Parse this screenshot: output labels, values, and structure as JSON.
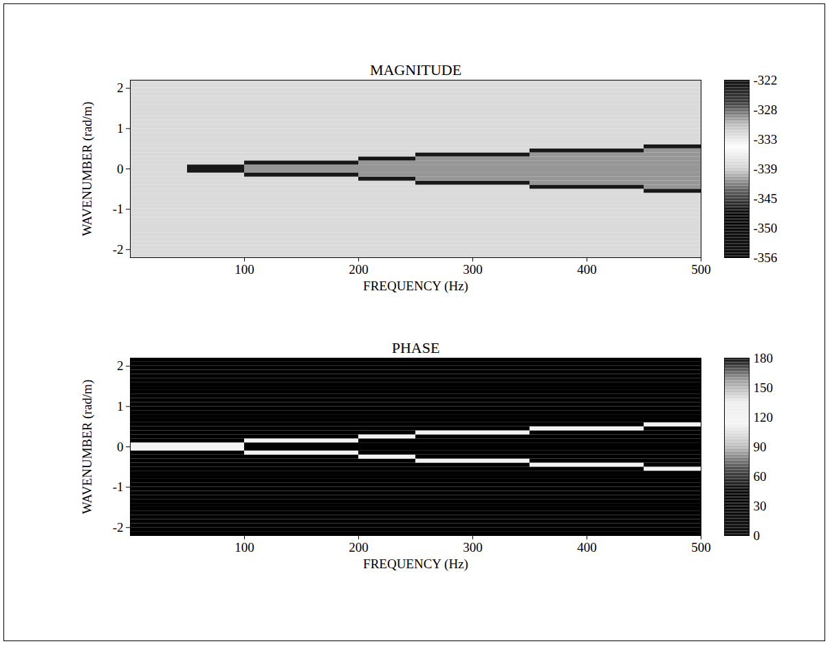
{
  "chart_data": [
    {
      "type": "heatmap",
      "title": "MAGNITUDE",
      "x_label": "FREQUENCY (Hz)",
      "y_label": "WAVENUMBER (rad/m)",
      "xlim": [
        0,
        500
      ],
      "xticks": [
        100,
        200,
        300,
        400,
        500
      ],
      "ylim": [
        -2.2,
        2.2
      ],
      "yticks": [
        -2,
        -1,
        0,
        1,
        2
      ],
      "x_bins": [
        0,
        50,
        100,
        150,
        200,
        250,
        300,
        350,
        400,
        450,
        500
      ],
      "y_bins": [
        -2.2,
        -2.1,
        -2.0,
        -1.9,
        -1.8,
        -1.7,
        -1.6,
        -1.5,
        -1.4,
        -1.3,
        -1.2,
        -1.1,
        -1.0,
        -0.9,
        -0.8,
        -0.7,
        -0.6,
        -0.5,
        -0.4,
        -0.3,
        -0.2,
        -0.1,
        0,
        0.1,
        0.2,
        0.3,
        0.4,
        0.5,
        0.6,
        0.7,
        0.8,
        0.9,
        1.0,
        1.1,
        1.2,
        1.3,
        1.4,
        1.5,
        1.6,
        1.7,
        1.8,
        1.9,
        2.0,
        2.1,
        2.2
      ],
      "z": [
        [
          -338,
          -338,
          -338,
          -338,
          -338,
          -338,
          -338,
          -338,
          -338,
          -338
        ],
        [
          -338,
          -338,
          -338,
          -338,
          -338,
          -338,
          -338,
          -338,
          -338,
          -338
        ],
        [
          -338,
          -338,
          -338,
          -338,
          -338,
          -338,
          -338,
          -338,
          -338,
          -338
        ],
        [
          -338,
          -338,
          -338,
          -338,
          -338,
          -338,
          -338,
          -338,
          -338,
          -338
        ],
        [
          -338,
          -338,
          -338,
          -338,
          -338,
          -338,
          -338,
          -338,
          -338,
          -338
        ],
        [
          -338,
          -338,
          -338,
          -338,
          -338,
          -338,
          -338,
          -338,
          -338,
          -338
        ],
        [
          -338,
          -338,
          -338,
          -338,
          -338,
          -338,
          -338,
          -338,
          -338,
          -338
        ],
        [
          -338,
          -338,
          -338,
          -338,
          -338,
          -338,
          -338,
          -338,
          -338,
          -338
        ],
        [
          -338,
          -338,
          -338,
          -338,
          -338,
          -338,
          -338,
          -338,
          -338,
          -338
        ],
        [
          -338,
          -338,
          -338,
          -338,
          -338,
          -338,
          -338,
          -338,
          -338,
          -338
        ],
        [
          -338,
          -338,
          -338,
          -338,
          -338,
          -338,
          -338,
          -338,
          -338,
          -338
        ],
        [
          -338,
          -338,
          -338,
          -338,
          -338,
          -338,
          -338,
          -338,
          -338,
          -338
        ],
        [
          -338,
          -338,
          -338,
          -338,
          -338,
          -338,
          -338,
          -338,
          -338,
          -338
        ],
        [
          -338,
          -338,
          -338,
          -338,
          -338,
          -338,
          -338,
          -338,
          -338,
          -338
        ],
        [
          -338,
          -338,
          -338,
          -338,
          -338,
          -338,
          -338,
          -338,
          -338,
          -338
        ],
        [
          -338,
          -338,
          -338,
          -338,
          -338,
          -338,
          -338,
          -338,
          -338,
          -338
        ],
        [
          -338,
          -338,
          -338,
          -338,
          -338,
          -338,
          -338,
          -338,
          -338,
          -324
        ],
        [
          -338,
          -338,
          -338,
          -338,
          -338,
          -338,
          -338,
          -324,
          -324,
          -341
        ],
        [
          -338,
          -338,
          -338,
          -338,
          -338,
          -324,
          -324,
          -341,
          -341,
          -341
        ],
        [
          -338,
          -338,
          -338,
          -338,
          -324,
          -341,
          -341,
          -341,
          -341,
          -341
        ],
        [
          -338,
          -338,
          -324,
          -324,
          -341,
          -341,
          -341,
          -341,
          -341,
          -341
        ],
        [
          -338,
          -324,
          -341,
          -341,
          -341,
          -341,
          -341,
          -341,
          -341,
          -341
        ],
        [
          -338,
          -324,
          -341,
          -341,
          -341,
          -341,
          -341,
          -341,
          -341,
          -341
        ],
        [
          -338,
          -338,
          -324,
          -324,
          -341,
          -341,
          -341,
          -341,
          -341,
          -341
        ],
        [
          -338,
          -338,
          -338,
          -338,
          -324,
          -341,
          -341,
          -341,
          -341,
          -341
        ],
        [
          -338,
          -338,
          -338,
          -338,
          -338,
          -324,
          -324,
          -341,
          -341,
          -341
        ],
        [
          -338,
          -338,
          -338,
          -338,
          -338,
          -338,
          -338,
          -324,
          -324,
          -341
        ],
        [
          -338,
          -338,
          -338,
          -338,
          -338,
          -338,
          -338,
          -338,
          -338,
          -324
        ],
        [
          -338,
          -338,
          -338,
          -338,
          -338,
          -338,
          -338,
          -338,
          -338,
          -338
        ],
        [
          -338,
          -338,
          -338,
          -338,
          -338,
          -338,
          -338,
          -338,
          -338,
          -338
        ],
        [
          -338,
          -338,
          -338,
          -338,
          -338,
          -338,
          -338,
          -338,
          -338,
          -338
        ],
        [
          -338,
          -338,
          -338,
          -338,
          -338,
          -338,
          -338,
          -338,
          -338,
          -338
        ],
        [
          -338,
          -338,
          -338,
          -338,
          -338,
          -338,
          -338,
          -338,
          -338,
          -338
        ],
        [
          -338,
          -338,
          -338,
          -338,
          -338,
          -338,
          -338,
          -338,
          -338,
          -338
        ],
        [
          -338,
          -338,
          -338,
          -338,
          -338,
          -338,
          -338,
          -338,
          -338,
          -338
        ],
        [
          -338,
          -338,
          -338,
          -338,
          -338,
          -338,
          -338,
          -338,
          -338,
          -338
        ],
        [
          -338,
          -338,
          -338,
          -338,
          -338,
          -338,
          -338,
          -338,
          -338,
          -338
        ],
        [
          -338,
          -338,
          -338,
          -338,
          -338,
          -338,
          -338,
          -338,
          -338,
          -338
        ],
        [
          -338,
          -338,
          -338,
          -338,
          -338,
          -338,
          -338,
          -338,
          -338,
          -338
        ],
        [
          -338,
          -338,
          -338,
          -338,
          -338,
          -338,
          -338,
          -338,
          -338,
          -338
        ],
        [
          -338,
          -338,
          -338,
          -338,
          -338,
          -338,
          -338,
          -338,
          -338,
          -338
        ],
        [
          -338,
          -338,
          -338,
          -338,
          -338,
          -338,
          -338,
          -338,
          -338,
          -338
        ],
        [
          -338,
          -338,
          -338,
          -338,
          -338,
          -338,
          -338,
          -338,
          -338,
          -338
        ],
        [
          -338,
          -338,
          -338,
          -338,
          -338,
          -338,
          -338,
          -338,
          -338,
          -338
        ]
      ],
      "colorbar": {
        "range": [
          -356,
          -322
        ],
        "ticks": [
          -322,
          {
            "value": -327.67,
            "label": "-328"
          },
          {
            "value": -333.33,
            "label": "-333"
          },
          -339,
          {
            "value": -344.67,
            "label": "-345"
          },
          {
            "value": -350.33,
            "label": "-350"
          },
          -356
        ],
        "colors": [
          "#000000",
          "#000000",
          "#000000",
          "#555555",
          "#cfcfcf",
          "#ffffff",
          "#bbbbbb",
          "#333333",
          "#000000"
        ]
      }
    },
    {
      "type": "heatmap",
      "title": "PHASE",
      "x_label": "FREQUENCY (Hz)",
      "y_label": "WAVENUMBER (rad/m)",
      "xlim": [
        0,
        500
      ],
      "xticks": [
        100,
        200,
        300,
        400,
        500
      ],
      "ylim": [
        -2.2,
        2.2
      ],
      "yticks": [
        -2,
        -1,
        0,
        1,
        2
      ],
      "x_bins": [
        0,
        50,
        100,
        150,
        200,
        250,
        300,
        350,
        400,
        450,
        500
      ],
      "y_bins": [
        -2.2,
        -2.1,
        -2.0,
        -1.9,
        -1.8,
        -1.7,
        -1.6,
        -1.5,
        -1.4,
        -1.3,
        -1.2,
        -1.1,
        -1.0,
        -0.9,
        -0.8,
        -0.7,
        -0.6,
        -0.5,
        -0.4,
        -0.3,
        -0.2,
        -0.1,
        0,
        0.1,
        0.2,
        0.3,
        0.4,
        0.5,
        0.6,
        0.7,
        0.8,
        0.9,
        1.0,
        1.1,
        1.2,
        1.3,
        1.4,
        1.5,
        1.6,
        1.7,
        1.8,
        1.9,
        2.0,
        2.1,
        2.2
      ],
      "z": [
        [
          10,
          10,
          10,
          10,
          10,
          10,
          10,
          10,
          10,
          10
        ],
        [
          10,
          10,
          10,
          10,
          10,
          10,
          10,
          10,
          10,
          10
        ],
        [
          10,
          10,
          10,
          10,
          10,
          10,
          10,
          10,
          10,
          10
        ],
        [
          10,
          10,
          10,
          10,
          10,
          10,
          10,
          10,
          10,
          10
        ],
        [
          10,
          10,
          10,
          10,
          10,
          10,
          10,
          10,
          10,
          10
        ],
        [
          10,
          10,
          10,
          10,
          10,
          10,
          10,
          10,
          10,
          10
        ],
        [
          10,
          10,
          10,
          10,
          10,
          10,
          10,
          10,
          10,
          10
        ],
        [
          10,
          10,
          10,
          10,
          10,
          10,
          10,
          10,
          10,
          10
        ],
        [
          10,
          10,
          10,
          10,
          10,
          10,
          10,
          10,
          10,
          10
        ],
        [
          10,
          10,
          10,
          10,
          10,
          10,
          10,
          10,
          10,
          10
        ],
        [
          10,
          10,
          10,
          10,
          10,
          10,
          10,
          10,
          10,
          10
        ],
        [
          10,
          10,
          10,
          10,
          10,
          10,
          10,
          10,
          10,
          10
        ],
        [
          10,
          10,
          10,
          10,
          10,
          10,
          10,
          10,
          10,
          10
        ],
        [
          10,
          10,
          10,
          10,
          10,
          10,
          10,
          10,
          10,
          10
        ],
        [
          10,
          10,
          10,
          10,
          10,
          10,
          10,
          10,
          10,
          10
        ],
        [
          10,
          10,
          10,
          10,
          10,
          10,
          10,
          10,
          10,
          10
        ],
        [
          10,
          10,
          10,
          10,
          10,
          10,
          10,
          10,
          10,
          120
        ],
        [
          10,
          10,
          10,
          10,
          10,
          10,
          10,
          120,
          120,
          10
        ],
        [
          10,
          10,
          10,
          10,
          10,
          120,
          120,
          10,
          10,
          10
        ],
        [
          10,
          10,
          10,
          10,
          120,
          10,
          10,
          10,
          10,
          10
        ],
        [
          10,
          10,
          120,
          120,
          10,
          10,
          10,
          10,
          10,
          10
        ],
        [
          120,
          120,
          10,
          10,
          10,
          10,
          10,
          10,
          10,
          10
        ],
        [
          120,
          120,
          10,
          10,
          10,
          10,
          10,
          10,
          10,
          10
        ],
        [
          10,
          10,
          120,
          120,
          10,
          10,
          10,
          10,
          10,
          10
        ],
        [
          10,
          10,
          10,
          10,
          120,
          10,
          10,
          10,
          10,
          10
        ],
        [
          10,
          10,
          10,
          10,
          10,
          120,
          120,
          10,
          10,
          10
        ],
        [
          10,
          10,
          10,
          10,
          10,
          10,
          10,
          120,
          120,
          10
        ],
        [
          10,
          10,
          10,
          10,
          10,
          10,
          10,
          10,
          10,
          120
        ],
        [
          10,
          10,
          10,
          10,
          10,
          10,
          10,
          10,
          10,
          10
        ],
        [
          10,
          10,
          10,
          10,
          10,
          10,
          10,
          10,
          10,
          10
        ],
        [
          10,
          10,
          10,
          10,
          10,
          10,
          10,
          10,
          10,
          10
        ],
        [
          10,
          10,
          10,
          10,
          10,
          10,
          10,
          10,
          10,
          10
        ],
        [
          10,
          10,
          10,
          10,
          10,
          10,
          10,
          10,
          10,
          10
        ],
        [
          10,
          10,
          10,
          10,
          10,
          10,
          10,
          10,
          10,
          10
        ],
        [
          10,
          10,
          10,
          10,
          10,
          10,
          10,
          10,
          10,
          10
        ],
        [
          10,
          10,
          10,
          10,
          10,
          10,
          10,
          10,
          10,
          10
        ],
        [
          10,
          10,
          10,
          10,
          10,
          10,
          10,
          10,
          10,
          10
        ],
        [
          10,
          10,
          10,
          10,
          10,
          10,
          10,
          10,
          10,
          10
        ],
        [
          10,
          10,
          10,
          10,
          10,
          10,
          10,
          10,
          10,
          10
        ],
        [
          10,
          10,
          10,
          10,
          10,
          10,
          10,
          10,
          10,
          10
        ],
        [
          10,
          10,
          10,
          10,
          10,
          10,
          10,
          10,
          10,
          10
        ],
        [
          10,
          10,
          10,
          10,
          10,
          10,
          10,
          10,
          10,
          10
        ],
        [
          10,
          10,
          10,
          10,
          10,
          10,
          10,
          10,
          10,
          10
        ],
        [
          10,
          10,
          10,
          10,
          10,
          10,
          10,
          10,
          10,
          10
        ]
      ],
      "colorbar": {
        "range": [
          0,
          180
        ],
        "ticks": [
          0,
          30,
          60,
          90,
          120,
          150,
          180
        ],
        "colors": [
          "#000000",
          "#000000",
          "#000000",
          "#444444",
          "#bbbbbb",
          "#f4f4f4",
          "#eeeeee",
          "#999999",
          "#000000"
        ]
      }
    }
  ]
}
